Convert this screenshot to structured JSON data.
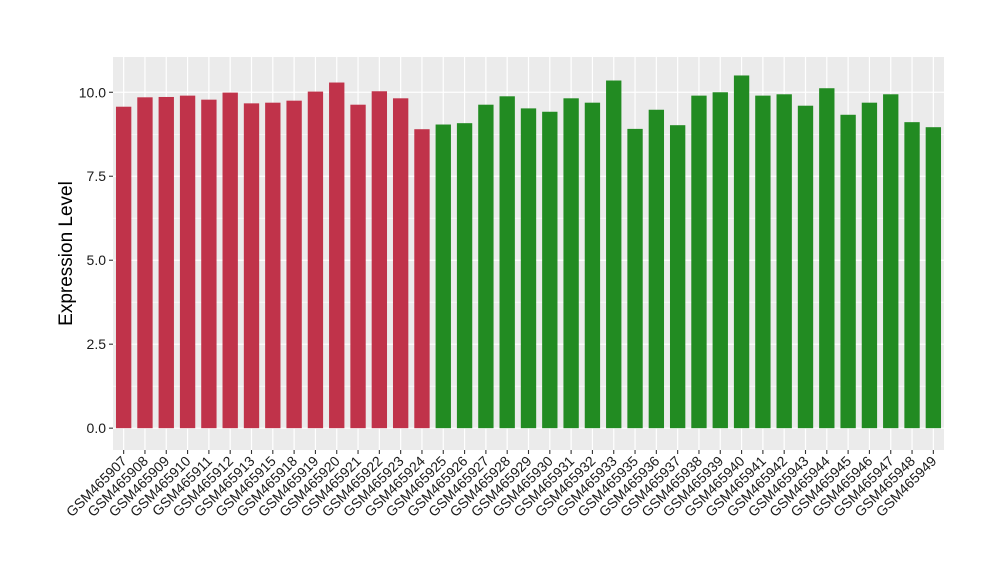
{
  "chart_data": {
    "type": "bar",
    "title": "",
    "xlabel": "",
    "ylabel": "Expression Level",
    "ylim": [
      -0.65,
      11.05
    ],
    "yticks": [
      0.0,
      2.5,
      5.0,
      7.5,
      10.0
    ],
    "ytick_labels": [
      "0.0",
      "2.5",
      "5.0",
      "7.5",
      "10.0"
    ],
    "grid": true,
    "legend": "none",
    "panel_background": "#EBEBEB",
    "grid_color": "#FFFFFF",
    "group_colors": [
      "#C0334A",
      "#228B22"
    ],
    "categories": [
      "GSM465907",
      "GSM465908",
      "GSM465909",
      "GSM465910",
      "GSM465911",
      "GSM465912",
      "GSM465913",
      "GSM465915",
      "GSM465918",
      "GSM465919",
      "GSM465920",
      "GSM465921",
      "GSM465922",
      "GSM465923",
      "GSM465924",
      "GSM465925",
      "GSM465926",
      "GSM465927",
      "GSM465928",
      "GSM465929",
      "GSM465930",
      "GSM465931",
      "GSM465932",
      "GSM465933",
      "GSM465935",
      "GSM465936",
      "GSM465937",
      "GSM465938",
      "GSM465939",
      "GSM465940",
      "GSM465941",
      "GSM465942",
      "GSM465943",
      "GSM465944",
      "GSM465945",
      "GSM465946",
      "GSM465947",
      "GSM465948",
      "GSM465949"
    ],
    "values": [
      9.57,
      9.85,
      9.86,
      9.9,
      9.78,
      9.99,
      9.67,
      9.69,
      9.75,
      10.02,
      10.29,
      9.63,
      10.03,
      9.82,
      8.9,
      9.04,
      9.08,
      9.63,
      9.88,
      9.52,
      9.42,
      9.82,
      9.69,
      10.35,
      8.91,
      9.48,
      9.02,
      9.9,
      10.0,
      10.5,
      9.9,
      9.94,
      9.6,
      10.12,
      9.33,
      9.69,
      9.94,
      9.11,
      8.96
    ],
    "groups": [
      0,
      0,
      0,
      0,
      0,
      0,
      0,
      0,
      0,
      0,
      0,
      0,
      0,
      0,
      0,
      1,
      1,
      1,
      1,
      1,
      1,
      1,
      1,
      1,
      1,
      1,
      1,
      1,
      1,
      1,
      1,
      1,
      1,
      1,
      1,
      1,
      1,
      1,
      1
    ]
  }
}
